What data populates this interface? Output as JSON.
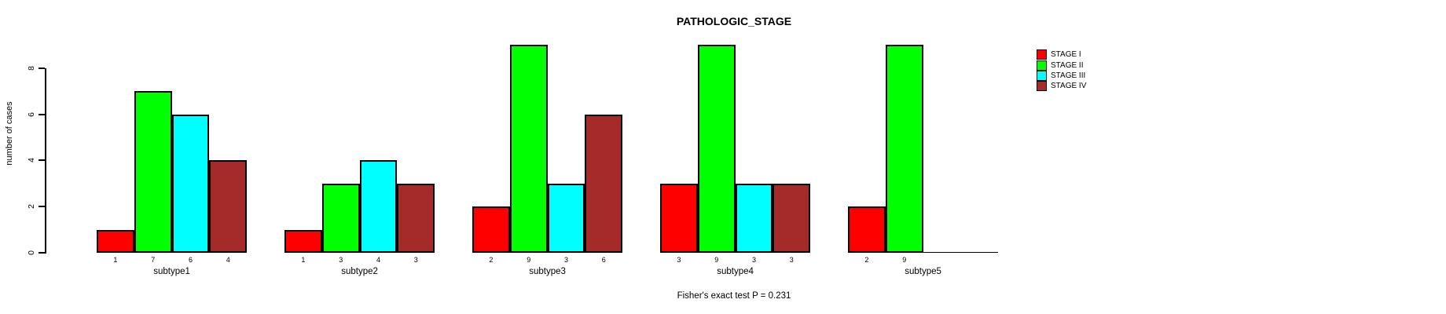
{
  "chart_data": {
    "type": "bar",
    "grouped": true,
    "title": "PATHOLOGIC_STAGE",
    "xlabel": "",
    "ylabel": "number of cases",
    "annotation": "Fisher's exact test P = 0.231",
    "categories": [
      "subtype1",
      "subtype2",
      "subtype3",
      "subtype4",
      "subtype5"
    ],
    "series": [
      {
        "name": "STAGE I",
        "color": "#FF0000",
        "values": [
          1,
          1,
          2,
          3,
          2
        ]
      },
      {
        "name": "STAGE II",
        "color": "#00FF00",
        "values": [
          7,
          3,
          9,
          9,
          9
        ]
      },
      {
        "name": "STAGE III",
        "color": "#00FFFF",
        "values": [
          6,
          4,
          3,
          3,
          0
        ]
      },
      {
        "name": "STAGE IV",
        "color": "#A52A2A",
        "values": [
          4,
          3,
          6,
          3,
          0
        ]
      }
    ],
    "yticks": [
      0,
      2,
      4,
      6,
      8
    ],
    "ylim": [
      0,
      9
    ],
    "grid": false,
    "legend_position": "top-right",
    "bar_value_labels_shown": true,
    "zero_value_labels_hidden": true
  }
}
